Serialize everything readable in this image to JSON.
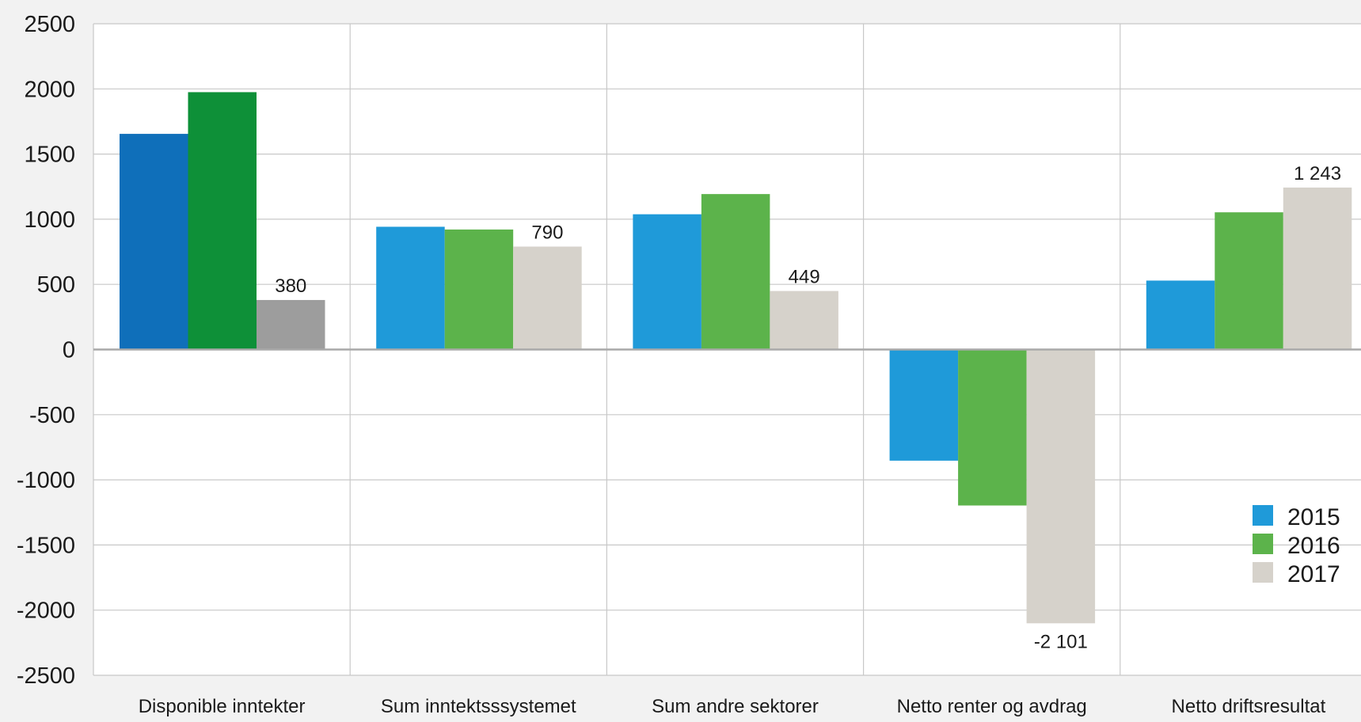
{
  "chart_data": {
    "type": "bar",
    "categories": [
      "Disponible inntekter",
      "Sum inntektsssystemet",
      "Sum andre sektorer",
      "Netto renter og avdrag",
      "Netto driftsresultat"
    ],
    "series": [
      {
        "name": "2015",
        "values": [
          1655,
          942,
          1038,
          -853,
          529
        ],
        "color": "#1f9ad9"
      },
      {
        "name": "2016",
        "values": [
          1975,
          921,
          1193,
          -1197,
          1053
        ],
        "color": "#5cb34b"
      },
      {
        "name": "2017",
        "values": [
          380,
          790,
          449,
          -2101,
          1243
        ],
        "color": "#d6d2cb"
      }
    ],
    "highlight_colors": [
      "#0f6fba",
      "#0e9038",
      "#9d9d9d"
    ],
    "data_labels": [
      "380",
      "790",
      "449",
      "-2 101",
      "1 243"
    ],
    "y_ticks": [
      "2500",
      "2000",
      "1500",
      "1000",
      "500",
      "0",
      "-500",
      "-1000",
      "-1500",
      "-2000",
      "-2500"
    ],
    "ylim": [
      -2500,
      2500
    ],
    "grid": true,
    "legend_position": "bottom-right",
    "title": "",
    "xlabel": "",
    "ylabel": ""
  }
}
